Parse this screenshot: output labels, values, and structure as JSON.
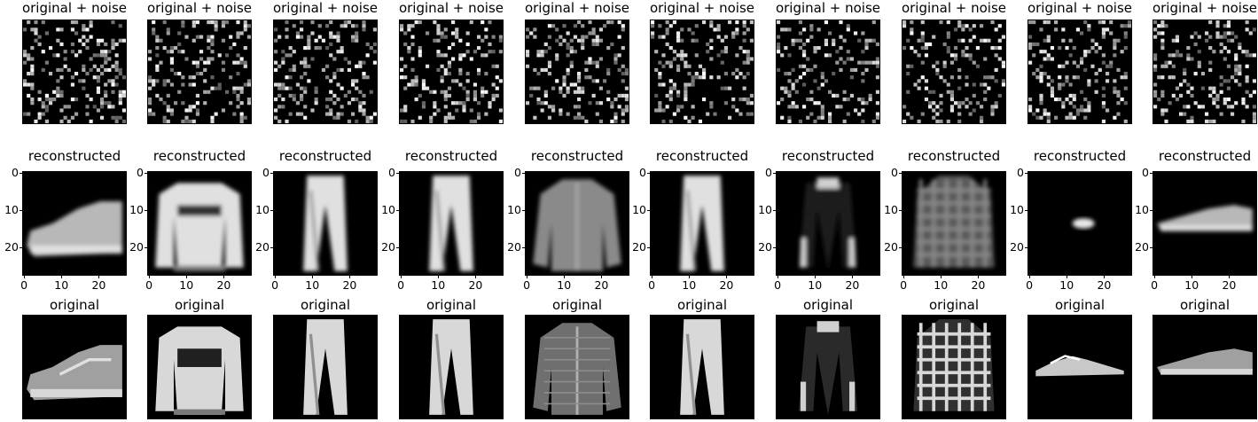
{
  "rows": [
    {
      "id": "noisy",
      "title": "original + noise",
      "show_axes": false
    },
    {
      "id": "reconstructed",
      "title": "reconstructed",
      "show_axes": true
    },
    {
      "id": "original",
      "title": "original",
      "show_axes": false
    }
  ],
  "axis": {
    "x_ticks": [
      "0",
      "10",
      "20"
    ],
    "y_ticks": [
      "0",
      "10",
      "20"
    ]
  },
  "samples": [
    {
      "index": 0,
      "item": "sneaker"
    },
    {
      "index": 1,
      "item": "pullover"
    },
    {
      "index": 2,
      "item": "trouser"
    },
    {
      "index": 3,
      "item": "trouser"
    },
    {
      "index": 4,
      "item": "shirt"
    },
    {
      "index": 5,
      "item": "trouser"
    },
    {
      "index": 6,
      "item": "coat"
    },
    {
      "index": 7,
      "item": "shirt"
    },
    {
      "index": 8,
      "item": "sandal"
    },
    {
      "index": 9,
      "item": "sneaker"
    }
  ],
  "colors": {
    "image_background": "#000000",
    "page_background": "#ffffff"
  }
}
